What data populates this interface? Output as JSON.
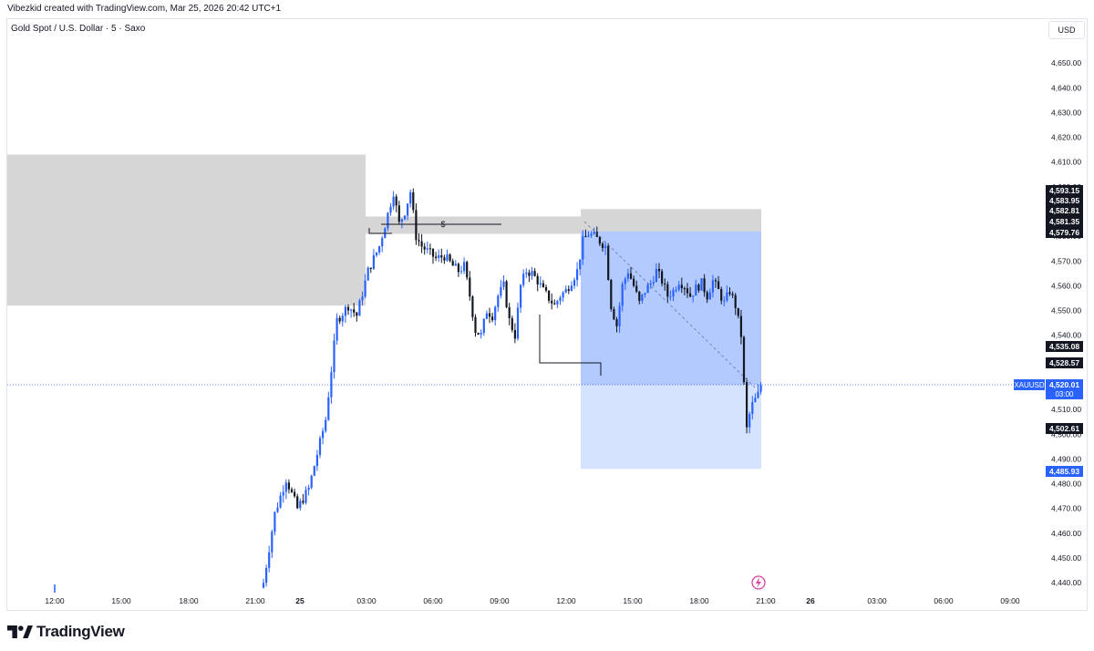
{
  "header": {
    "credit": "Vibezkid created with TradingView.com, Mar 25, 2026 20:42 UTC+1"
  },
  "symbol_line": "Gold Spot / U.S. Dollar · 5 · Saxo",
  "currency": "USD",
  "footer": {
    "brand": "TradingView"
  },
  "colors": {
    "up": "#2962ff",
    "down": "#131722",
    "supply_zone": "#d6d6d6",
    "target_zone": "#aac4ff",
    "target_zone_light": "#d2e0ff",
    "price_line": "#2962ff"
  },
  "chart_data": {
    "type": "candlestick",
    "title": "Gold Spot / U.S. Dollar",
    "ylim": [
      4436,
      4660
    ],
    "y_ticks": [
      "4,650.00",
      "4,640.00",
      "4,630.00",
      "4,620.00",
      "4,610.00",
      "4,600.00",
      "4,590.00",
      "4,580.00",
      "4,570.00",
      "4,560.00",
      "4,550.00",
      "4,540.00",
      "4,530.00",
      "4,520.00",
      "4,510.00",
      "4,500.00",
      "4,490.00",
      "4,480.00",
      "4,470.00",
      "4,460.00",
      "4,450.00",
      "4,440.00"
    ],
    "x_ticks": [
      "12:00",
      "15:00",
      "18:00",
      "21:00",
      "25",
      "03:00",
      "06:00",
      "09:00",
      "12:00",
      "15:00",
      "18:00",
      "21:00",
      "26",
      "03:00",
      "06:00",
      "09:00"
    ],
    "current_price": {
      "symbol": "XAUUSD",
      "value": "4,520.01",
      "countdown": "03:00"
    },
    "price_labels": [
      {
        "value": "4,593.15",
        "style": "dark"
      },
      {
        "value": "4,583.95",
        "style": "dark"
      },
      {
        "value": "4,582.81",
        "style": "dark"
      },
      {
        "value": "4,581.35",
        "style": "dark"
      },
      {
        "value": "4,579.76",
        "style": "dark"
      },
      {
        "value": "4,535.08",
        "style": "dark"
      },
      {
        "value": "4,528.57",
        "style": "dark"
      },
      {
        "value": "4,502.61",
        "style": "dark"
      },
      {
        "value": "4,485.93",
        "style": "blue"
      }
    ],
    "annotations": [
      {
        "type": "rect",
        "name": "supply-zone-left",
        "y_range": [
          4552,
          4613
        ]
      },
      {
        "type": "rect",
        "name": "supply-zone-mid",
        "y_range": [
          4581,
          4588
        ]
      },
      {
        "type": "rect",
        "name": "supply-zone-right",
        "y_range": [
          4582,
          4591
        ]
      },
      {
        "type": "rect",
        "name": "target-zone-upper",
        "y_range": [
          4520,
          4582
        ]
      },
      {
        "type": "rect",
        "name": "target-zone-lower",
        "y_range": [
          4486,
          4520
        ]
      },
      {
        "type": "text",
        "name": "liquidity-marker",
        "text": "$"
      }
    ],
    "series": [
      {
        "name": "XAUUSD",
        "anchors": [
          [
            0,
            4440
          ],
          [
            4,
            4468
          ],
          [
            8,
            4482
          ],
          [
            12,
            4470
          ],
          [
            16,
            4478
          ],
          [
            22,
            4506
          ],
          [
            26,
            4546
          ],
          [
            30,
            4552
          ],
          [
            33,
            4548
          ],
          [
            37,
            4566
          ],
          [
            41,
            4576
          ],
          [
            44,
            4589
          ],
          [
            46,
            4598
          ],
          [
            48,
            4585
          ],
          [
            50,
            4590
          ],
          [
            52,
            4598
          ],
          [
            54,
            4580
          ],
          [
            56,
            4576
          ],
          [
            58,
            4574
          ],
          [
            61,
            4571
          ],
          [
            64,
            4572
          ],
          [
            67,
            4568
          ],
          [
            69,
            4566
          ],
          [
            71,
            4568
          ],
          [
            73,
            4556
          ],
          [
            75,
            4542
          ],
          [
            77,
            4540
          ],
          [
            79,
            4550
          ],
          [
            81,
            4548
          ],
          [
            83,
            4556
          ],
          [
            85,
            4560
          ],
          [
            87,
            4546
          ],
          [
            89,
            4540
          ],
          [
            91,
            4560
          ],
          [
            93,
            4566
          ],
          [
            95,
            4565
          ],
          [
            97,
            4562
          ],
          [
            99,
            4558
          ],
          [
            101,
            4555
          ],
          [
            103,
            4552
          ],
          [
            105,
            4556
          ],
          [
            107,
            4558
          ],
          [
            109,
            4562
          ],
          [
            111,
            4566
          ],
          [
            113,
            4578
          ],
          [
            115,
            4581
          ],
          [
            117,
            4580
          ],
          [
            119,
            4578
          ],
          [
            121,
            4576
          ],
          [
            123,
            4552
          ],
          [
            125,
            4544
          ],
          [
            127,
            4560
          ],
          [
            129,
            4566
          ],
          [
            131,
            4560
          ],
          [
            133,
            4553
          ],
          [
            135,
            4558
          ],
          [
            137,
            4561
          ],
          [
            139,
            4566
          ],
          [
            141,
            4562
          ],
          [
            143,
            4556
          ],
          [
            145,
            4558
          ],
          [
            147,
            4562
          ],
          [
            149,
            4560
          ],
          [
            151,
            4556
          ],
          [
            153,
            4559
          ],
          [
            155,
            4561
          ],
          [
            157,
            4556
          ],
          [
            159,
            4562
          ],
          [
            161,
            4558
          ],
          [
            163,
            4553
          ],
          [
            165,
            4558
          ],
          [
            167,
            4552
          ],
          [
            169,
            4540
          ],
          [
            170,
            4520
          ],
          [
            171,
            4502
          ],
          [
            172,
            4508
          ],
          [
            173,
            4512
          ],
          [
            174,
            4514
          ],
          [
            175,
            4516
          ],
          [
            176,
            4520
          ]
        ]
      }
    ]
  }
}
